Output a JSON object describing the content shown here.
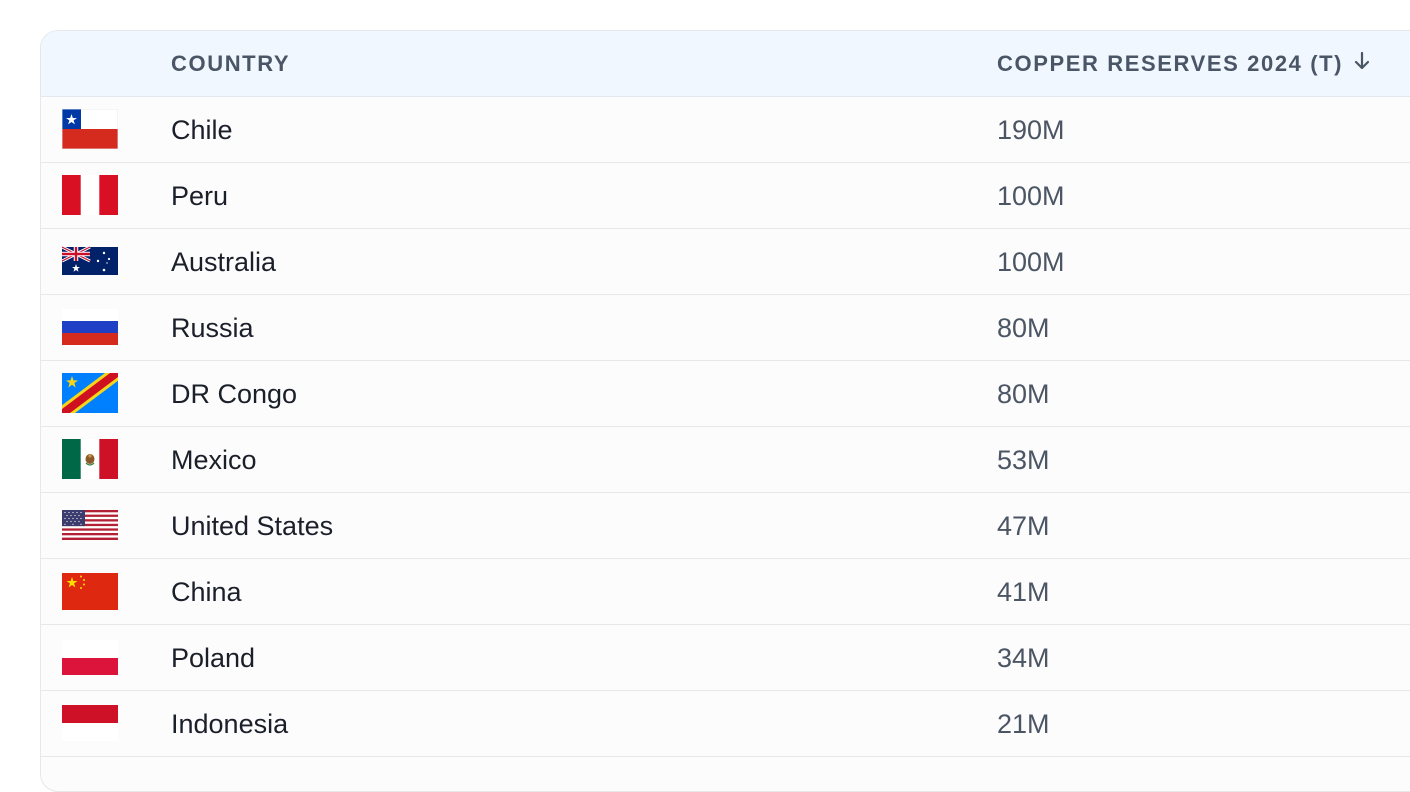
{
  "table": {
    "headers": {
      "country": "COUNTRY",
      "reserves": "COPPER RESERVES 2024 (T)"
    },
    "sort": {
      "column": "reserves",
      "direction": "descending",
      "icon": "arrow-down-icon"
    },
    "rows": [
      {
        "flag": "chile-flag-icon",
        "country": "Chile",
        "reserves": "190M"
      },
      {
        "flag": "peru-flag-icon",
        "country": "Peru",
        "reserves": "100M"
      },
      {
        "flag": "australia-flag-icon",
        "country": "Australia",
        "reserves": "100M"
      },
      {
        "flag": "russia-flag-icon",
        "country": "Russia",
        "reserves": "80M"
      },
      {
        "flag": "dr-congo-flag-icon",
        "country": "DR Congo",
        "reserves": "80M"
      },
      {
        "flag": "mexico-flag-icon",
        "country": "Mexico",
        "reserves": "53M"
      },
      {
        "flag": "united-states-flag-icon",
        "country": "United States",
        "reserves": "47M"
      },
      {
        "flag": "china-flag-icon",
        "country": "China",
        "reserves": "41M"
      },
      {
        "flag": "poland-flag-icon",
        "country": "Poland",
        "reserves": "34M"
      },
      {
        "flag": "indonesia-flag-icon",
        "country": "Indonesia",
        "reserves": "21M"
      }
    ]
  },
  "colors": {
    "header_bg": "#f0f7fe",
    "header_text": "#4a5566",
    "row_text": "#1a1f29",
    "value_text": "#4b5563",
    "border": "#e6e8eb"
  }
}
